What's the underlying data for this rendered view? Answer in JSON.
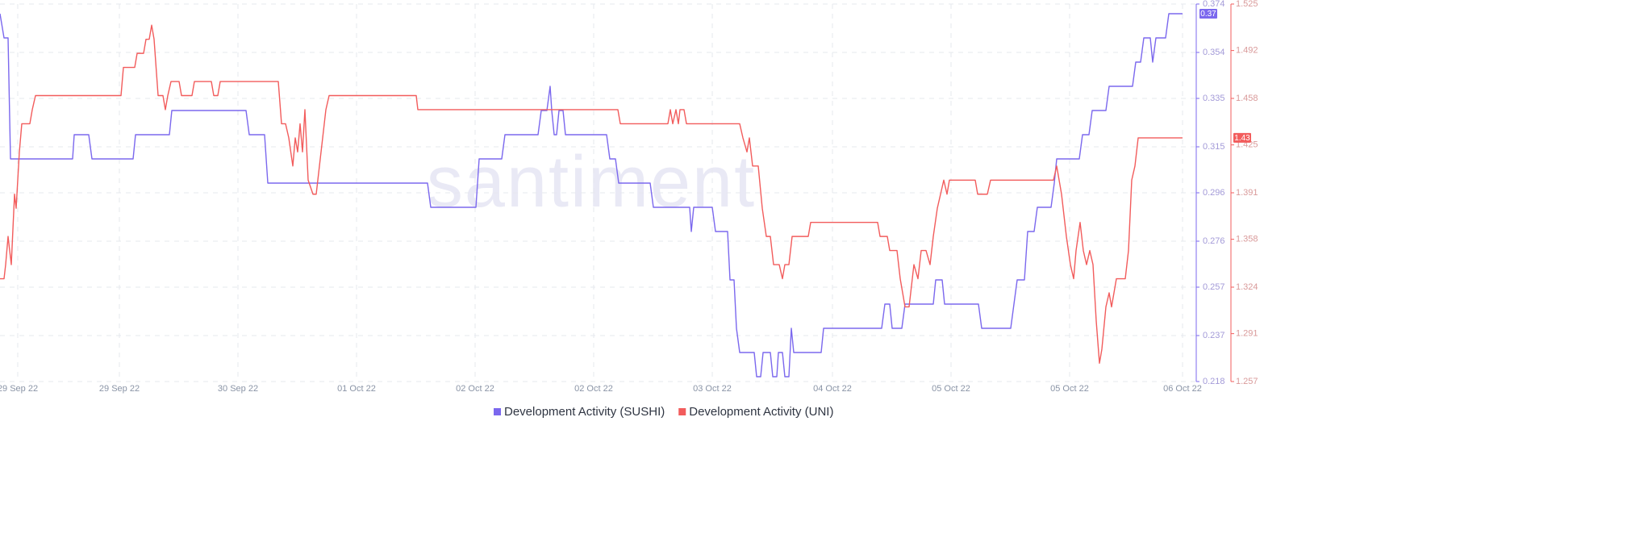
{
  "chart_data": {
    "type": "line",
    "watermark": "santiment",
    "xlim": [
      0,
      146.6
    ],
    "xticks": [
      {
        "value": 2.2,
        "label": "29 Sep 22"
      },
      {
        "value": 14.8,
        "label": "29 Sep 22"
      },
      {
        "value": 29.5,
        "label": "30 Sep 22"
      },
      {
        "value": 44.2,
        "label": "01 Oct 22"
      },
      {
        "value": 58.9,
        "label": "02 Oct 22"
      },
      {
        "value": 73.6,
        "label": "02 Oct 22"
      },
      {
        "value": 88.3,
        "label": "03 Oct 22"
      },
      {
        "value": 103.2,
        "label": "04 Oct 22"
      },
      {
        "value": 117.9,
        "label": "05 Oct 22"
      },
      {
        "value": 132.6,
        "label": "05 Oct 22"
      },
      {
        "value": 146.6,
        "label": "06 Oct 22"
      }
    ],
    "ylim": [
      0.218,
      0.374
    ],
    "yticks": [
      0.218,
      0.237,
      0.257,
      0.276,
      0.296,
      0.315,
      0.335,
      0.354,
      0.374
    ],
    "y2lim": [
      1.257,
      1.525
    ],
    "y2ticks": [
      1.257,
      1.291,
      1.324,
      1.358,
      1.391,
      1.425,
      1.458,
      1.492,
      1.525
    ],
    "grid": true,
    "legend": "bottom",
    "series": [
      {
        "name": "Development Activity (SUSHI)",
        "color": "#7b68ee",
        "current_label": "0.37",
        "x": [
          0,
          0.5,
          1.0,
          1.3,
          9.0,
          9.2,
          11.0,
          11.4,
          16.5,
          16.8,
          21.0,
          21.3,
          30.5,
          30.9,
          32.8,
          33.2,
          53.0,
          53.4,
          59.0,
          59.4,
          62.2,
          62.6,
          66.7,
          67.1,
          67.8,
          68.2,
          68.4,
          68.7,
          69.0,
          69.3,
          69.8,
          70.1,
          75.2,
          75.6,
          76.3,
          76.7,
          80.6,
          81.0,
          85.5,
          85.7,
          86.0,
          88.3,
          88.7,
          90.2,
          90.5,
          91.0,
          91.3,
          91.7,
          93.5,
          93.8,
          94.3,
          94.6,
          95.5,
          95.8,
          96.3,
          96.5,
          97.0,
          97.3,
          97.8,
          98.1,
          98.4,
          101.8,
          102.1,
          109.3,
          109.7,
          110.3,
          110.6,
          111.8,
          112.2,
          115.7,
          116.0,
          116.8,
          117.1,
          121.3,
          121.7,
          125.3,
          125.7,
          126.1,
          127.0,
          127.4,
          128.2,
          128.6,
          130.3,
          130.7,
          131.0,
          133.8,
          134.2,
          135.0,
          135.4,
          137.1,
          137.5,
          140.4,
          140.8,
          141.4,
          141.8,
          142.6,
          142.9,
          143.3,
          144.5,
          144.9,
          146.6
        ],
        "values": [
          0.37,
          0.36,
          0.36,
          0.31,
          0.31,
          0.32,
          0.32,
          0.31,
          0.31,
          0.32,
          0.32,
          0.33,
          0.33,
          0.32,
          0.32,
          0.3,
          0.3,
          0.29,
          0.29,
          0.31,
          0.31,
          0.32,
          0.32,
          0.33,
          0.33,
          0.34,
          0.33,
          0.32,
          0.32,
          0.33,
          0.33,
          0.32,
          0.32,
          0.31,
          0.31,
          0.3,
          0.3,
          0.29,
          0.29,
          0.28,
          0.29,
          0.29,
          0.28,
          0.28,
          0.26,
          0.26,
          0.24,
          0.23,
          0.23,
          0.22,
          0.22,
          0.23,
          0.23,
          0.22,
          0.22,
          0.23,
          0.23,
          0.22,
          0.22,
          0.24,
          0.23,
          0.23,
          0.24,
          0.24,
          0.25,
          0.25,
          0.24,
          0.24,
          0.25,
          0.25,
          0.26,
          0.26,
          0.25,
          0.25,
          0.24,
          0.24,
          0.25,
          0.26,
          0.26,
          0.28,
          0.28,
          0.29,
          0.29,
          0.3,
          0.31,
          0.31,
          0.32,
          0.32,
          0.33,
          0.33,
          0.34,
          0.34,
          0.35,
          0.35,
          0.36,
          0.36,
          0.35,
          0.36,
          0.36,
          0.37,
          0.37
        ]
      },
      {
        "name": "Development Activity (UNI)",
        "color": "#f25c5c",
        "axis": "y2",
        "current_label": "1.43",
        "x": [
          0,
          0.5,
          0.7,
          1.0,
          1.4,
          1.8,
          2.0,
          2.4,
          2.7,
          3.7,
          4.0,
          4.4,
          15.0,
          15.3,
          16.7,
          17.0,
          17.8,
          18.1,
          18.5,
          18.8,
          19.1,
          19.6,
          20.2,
          20.5,
          20.8,
          21.2,
          22.2,
          22.5,
          23.8,
          24.1,
          26.2,
          26.5,
          27.0,
          27.3,
          34.5,
          34.9,
          35.4,
          35.8,
          36.3,
          36.6,
          36.9,
          37.2,
          37.5,
          37.8,
          38.2,
          38.8,
          39.2,
          39.6,
          40.0,
          40.4,
          40.8,
          51.6,
          51.8,
          76.6,
          76.9,
          82.8,
          83.1,
          83.4,
          83.8,
          84.1,
          84.3,
          84.8,
          85.1,
          91.7,
          92.1,
          92.6,
          92.9,
          93.3,
          94.0,
          94.5,
          95.0,
          95.5,
          95.9,
          96.6,
          97.0,
          97.3,
          97.8,
          98.2,
          100.2,
          100.5,
          108.8,
          109.1,
          110.0,
          110.3,
          111.2,
          111.6,
          112.2,
          112.7,
          113.3,
          113.8,
          114.2,
          114.8,
          115.3,
          115.7,
          116.2,
          116.6,
          117.0,
          117.4,
          117.7,
          120.9,
          121.2,
          122.4,
          122.8,
          130.6,
          131.0,
          131.6,
          132.2,
          132.7,
          133.1,
          133.4,
          133.9,
          134.3,
          134.7,
          135.1,
          135.5,
          135.9,
          136.3,
          136.6,
          137.1,
          137.5,
          137.8,
          138.4,
          139.5,
          139.9,
          140.3,
          140.7,
          141.1,
          146.6
        ],
        "values": [
          1.33,
          1.33,
          1.34,
          1.36,
          1.34,
          1.39,
          1.38,
          1.42,
          1.44,
          1.44,
          1.45,
          1.46,
          1.46,
          1.48,
          1.48,
          1.49,
          1.49,
          1.5,
          1.5,
          1.51,
          1.5,
          1.46,
          1.46,
          1.45,
          1.46,
          1.47,
          1.47,
          1.46,
          1.46,
          1.47,
          1.47,
          1.46,
          1.46,
          1.47,
          1.47,
          1.44,
          1.44,
          1.43,
          1.41,
          1.43,
          1.42,
          1.44,
          1.42,
          1.45,
          1.4,
          1.39,
          1.39,
          1.41,
          1.43,
          1.45,
          1.46,
          1.46,
          1.45,
          1.45,
          1.44,
          1.44,
          1.45,
          1.44,
          1.45,
          1.44,
          1.45,
          1.45,
          1.44,
          1.44,
          1.43,
          1.42,
          1.43,
          1.41,
          1.41,
          1.38,
          1.36,
          1.36,
          1.34,
          1.34,
          1.33,
          1.34,
          1.34,
          1.36,
          1.36,
          1.37,
          1.37,
          1.36,
          1.36,
          1.35,
          1.35,
          1.33,
          1.31,
          1.31,
          1.34,
          1.33,
          1.35,
          1.35,
          1.34,
          1.36,
          1.38,
          1.39,
          1.4,
          1.39,
          1.4,
          1.4,
          1.39,
          1.39,
          1.4,
          1.4,
          1.41,
          1.39,
          1.36,
          1.34,
          1.33,
          1.35,
          1.37,
          1.35,
          1.34,
          1.35,
          1.34,
          1.3,
          1.27,
          1.28,
          1.31,
          1.32,
          1.31,
          1.33,
          1.33,
          1.35,
          1.4,
          1.41,
          1.43,
          1.43
        ]
      }
    ]
  }
}
